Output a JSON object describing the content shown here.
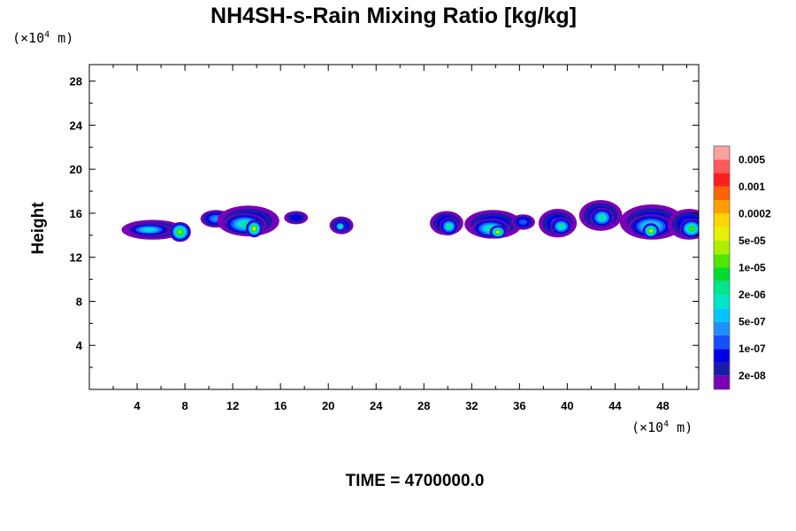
{
  "chart_data": {
    "type": "heatmap",
    "title": "NH4SH-s-Rain Mixing Ratio [kg/kg]",
    "ylabel": "Height",
    "xlabel": "",
    "x_unit": {
      "prefix": "(×10",
      "exp": "4",
      "suffix": " m)"
    },
    "y_unit": {
      "prefix": "(×10",
      "exp": "4",
      "suffix": " m)"
    },
    "xlim": [
      0,
      51
    ],
    "ylim": [
      0,
      29.5
    ],
    "x_ticks": [
      "4",
      "8",
      "12",
      "16",
      "20",
      "24",
      "28",
      "32",
      "36",
      "40",
      "44",
      "48"
    ],
    "y_ticks": [
      "4",
      "8",
      "12",
      "16",
      "20",
      "24",
      "28"
    ],
    "colorbar": {
      "colors": [
        "#7a00b8",
        "#1a1aa8",
        "#0000e6",
        "#1450ff",
        "#1e90ff",
        "#00c8ff",
        "#00e6c8",
        "#00e68c",
        "#00dc32",
        "#50e600",
        "#aaf000",
        "#e6f000",
        "#ffd700",
        "#ffa000",
        "#ff6400",
        "#ff1e1e",
        "#ff5a5a",
        "#ffa0a0"
      ],
      "labels": [
        "2e-08",
        "1e-07",
        "5e-07",
        "2e-06",
        "1e-05",
        "5e-05",
        "0.0002",
        "0.001",
        "0.005"
      ]
    },
    "cells": [
      {
        "x": 5.3,
        "y": 14.5,
        "rx": 2.6,
        "ry": 0.9,
        "level": 3
      },
      {
        "x": 5.0,
        "y": 14.5,
        "rx": 1.9,
        "ry": 0.6,
        "level": 6
      },
      {
        "x": 7.6,
        "y": 14.3,
        "rx": 0.9,
        "ry": 0.9,
        "level": 10
      },
      {
        "x": 10.6,
        "y": 15.5,
        "rx": 1.3,
        "ry": 0.8,
        "level": 4
      },
      {
        "x": 13.3,
        "y": 15.3,
        "rx": 2.6,
        "ry": 1.4,
        "level": 3
      },
      {
        "x": 13.0,
        "y": 15.0,
        "rx": 1.8,
        "ry": 1.0,
        "level": 7
      },
      {
        "x": 13.8,
        "y": 14.6,
        "rx": 0.7,
        "ry": 0.8,
        "level": 11
      },
      {
        "x": 17.3,
        "y": 15.6,
        "rx": 1.0,
        "ry": 0.6,
        "level": 2
      },
      {
        "x": 21.1,
        "y": 14.9,
        "rx": 1.0,
        "ry": 0.8,
        "level": 3
      },
      {
        "x": 21.0,
        "y": 14.8,
        "rx": 0.5,
        "ry": 0.5,
        "level": 7
      },
      {
        "x": 29.9,
        "y": 15.1,
        "rx": 1.4,
        "ry": 1.1,
        "level": 3
      },
      {
        "x": 30.1,
        "y": 14.8,
        "rx": 0.8,
        "ry": 0.8,
        "level": 7
      },
      {
        "x": 33.8,
        "y": 15.0,
        "rx": 2.4,
        "ry": 1.3,
        "level": 3
      },
      {
        "x": 33.6,
        "y": 14.6,
        "rx": 1.6,
        "ry": 0.9,
        "level": 7
      },
      {
        "x": 34.2,
        "y": 14.3,
        "rx": 0.7,
        "ry": 0.6,
        "level": 11
      },
      {
        "x": 36.3,
        "y": 15.2,
        "rx": 1.0,
        "ry": 0.7,
        "level": 3
      },
      {
        "x": 39.2,
        "y": 15.1,
        "rx": 1.6,
        "ry": 1.3,
        "level": 3
      },
      {
        "x": 39.5,
        "y": 14.8,
        "rx": 0.9,
        "ry": 0.8,
        "level": 7
      },
      {
        "x": 42.8,
        "y": 15.8,
        "rx": 1.8,
        "ry": 1.4,
        "level": 3
      },
      {
        "x": 42.9,
        "y": 15.6,
        "rx": 1.0,
        "ry": 0.9,
        "level": 7
      },
      {
        "x": 47.1,
        "y": 15.2,
        "rx": 2.7,
        "ry": 1.6,
        "level": 3
      },
      {
        "x": 47.0,
        "y": 14.8,
        "rx": 1.9,
        "ry": 1.1,
        "level": 7
      },
      {
        "x": 47.0,
        "y": 14.4,
        "rx": 0.7,
        "ry": 0.7,
        "level": 11
      },
      {
        "x": 50.2,
        "y": 15.0,
        "rx": 1.8,
        "ry": 1.4,
        "level": 3
      },
      {
        "x": 50.4,
        "y": 14.6,
        "rx": 1.0,
        "ry": 0.9,
        "level": 9
      }
    ]
  },
  "footer": {
    "time": "TIME = 4700000.0"
  }
}
